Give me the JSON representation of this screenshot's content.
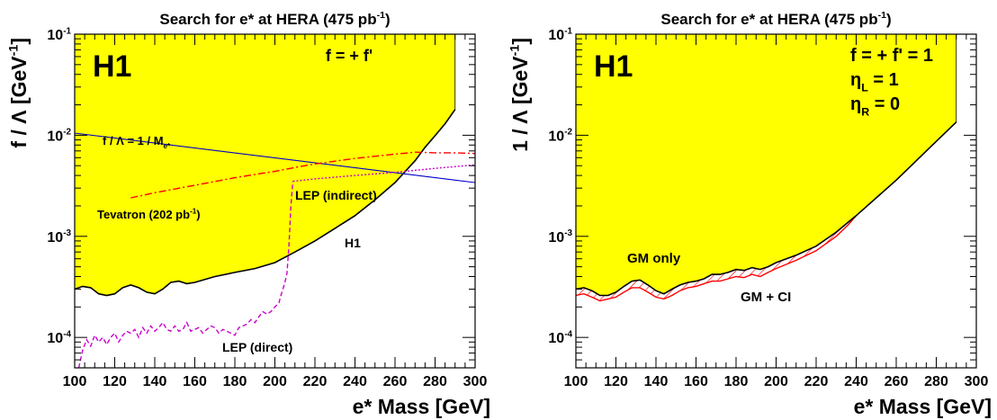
{
  "chart_data": [
    {
      "type": "line",
      "title": "Search for e* at HERA (475 pb",
      "title_sup": "-1",
      "title_end": ")",
      "xlabel": "e* Mass [GeV]",
      "ylabel": "f / Λ [GeV",
      "ylabel_sup": "-1",
      "ylabel_end": "]",
      "xlim": [
        100,
        300
      ],
      "ylim": [
        5e-05,
        0.1
      ],
      "yscale": "log",
      "x_ticks": [
        "100",
        "120",
        "140",
        "160",
        "180",
        "200",
        "220",
        "240",
        "260",
        "280",
        "300"
      ],
      "y_ticks": [
        {
          "base": "10",
          "exp": "-4",
          "v": 0.0001
        },
        {
          "base": "10",
          "exp": "-3",
          "v": 0.001
        },
        {
          "base": "10",
          "exp": "-2",
          "v": 0.01
        },
        {
          "base": "10",
          "exp": "-1",
          "v": 0.1
        }
      ],
      "logo": "H1",
      "annotation": "f = + f'",
      "series": [
        {
          "name": "H1",
          "kind": "exclusion",
          "color": "#000000",
          "fill": "#ffff00",
          "x": [
            100,
            104,
            108,
            112,
            116,
            120,
            124,
            128,
            132,
            136,
            140,
            144,
            148,
            152,
            156,
            160,
            170,
            180,
            190,
            200,
            210,
            220,
            230,
            240,
            250,
            260,
            270,
            275,
            280,
            285,
            290
          ],
          "y": [
            0.0003,
            0.00032,
            0.00031,
            0.00027,
            0.00026,
            0.00027,
            0.00031,
            0.00033,
            0.00031,
            0.00028,
            0.00027,
            0.0003,
            0.00035,
            0.00036,
            0.00034,
            0.00035,
            0.0004,
            0.00044,
            0.00048,
            0.00055,
            0.0007,
            0.0009,
            0.0012,
            0.0016,
            0.0023,
            0.0034,
            0.0056,
            0.0076,
            0.0099,
            0.013,
            0.018
          ]
        },
        {
          "name": "f / Λ  = 1 / M",
          "name_sub": "e*",
          "kind": "line",
          "color": "#0000cc",
          "x": [
            100,
            300
          ],
          "y": [
            0.0105,
            0.0034
          ]
        },
        {
          "name": "Tevatron (202 pb",
          "name_sup": "-1",
          "name_end": ")",
          "kind": "dashdot",
          "color": "#ff0000",
          "x": [
            128,
            140,
            160,
            180,
            200,
            210,
            220,
            240,
            260,
            270,
            280,
            290,
            300
          ],
          "y": [
            0.0024,
            0.0027,
            0.0032,
            0.0038,
            0.0044,
            0.0048,
            0.0052,
            0.0059,
            0.0065,
            0.0068,
            0.0067,
            0.0067,
            0.0066
          ]
        },
        {
          "name": "LEP (indirect)",
          "kind": "dotted",
          "color": "#cc00cc",
          "x": [
            209,
            220,
            240,
            260,
            280,
            300
          ],
          "y": [
            0.0035,
            0.0037,
            0.004,
            0.0043,
            0.0047,
            0.0051
          ]
        },
        {
          "name": "LEP (direct)",
          "kind": "dashed",
          "color": "#cc00cc",
          "x": [
            102,
            104,
            106,
            108,
            110,
            112,
            114,
            116,
            118,
            120,
            122,
            124,
            126,
            128,
            130,
            132,
            134,
            136,
            138,
            140,
            142,
            144,
            146,
            148,
            150,
            152,
            154,
            156,
            158,
            160,
            162,
            164,
            166,
            168,
            170,
            172,
            174,
            176,
            178,
            180,
            182,
            184,
            186,
            188,
            190,
            192,
            194,
            196,
            198,
            200,
            202,
            203,
            204,
            205,
            206,
            207,
            208,
            209
          ],
          "y": [
            5e-05,
            7.5e-05,
            9.5e-05,
            8.2e-05,
            0.000105,
            9e-05,
            0.0001,
            8.5e-05,
            0.0001,
            0.00011,
            9e-05,
            0.000105,
            0.000115,
            0.00011,
            0.00012,
            0.0001,
            0.000125,
            0.00011,
            0.00013,
            0.000115,
            0.000125,
            0.00014,
            0.00012,
            0.000115,
            0.00013,
            0.000115,
            0.00012,
            0.00014,
            0.000115,
            0.00012,
            0.000125,
            0.00011,
            0.00012,
            0.00013,
            0.000125,
            0.00011,
            0.00012,
            0.000115,
            0.00011,
            0.000105,
            0.000125,
            0.00013,
            0.000135,
            0.00015,
            0.00014,
            0.00016,
            0.00018,
            0.00017,
            0.00018,
            0.0002,
            0.00022,
            0.00026,
            0.0003,
            0.00035,
            0.00043,
            0.0008,
            0.002,
            0.0035
          ]
        }
      ],
      "labels": [
        {
          "text": "LEP (indirect)",
          "color": "#cc00cc"
        },
        {
          "text": "Tevatron (202 pb",
          "sup": "-1",
          "end": ")",
          "color": "#ff0000"
        },
        {
          "text": "H1",
          "color": "#000000"
        },
        {
          "text": "LEP (direct)",
          "color": "#cc00cc"
        }
      ]
    },
    {
      "type": "line",
      "title": "Search for e* at HERA (475 pb",
      "title_sup": "-1",
      "title_end": ")",
      "xlabel": "e* Mass [GeV]",
      "ylabel": "1 / Λ [GeV",
      "ylabel_sup": "-1",
      "ylabel_end": "]",
      "xlim": [
        100,
        300
      ],
      "ylim": [
        5e-05,
        0.1
      ],
      "yscale": "log",
      "x_ticks": [
        "100",
        "120",
        "140",
        "160",
        "180",
        "200",
        "220",
        "240",
        "260",
        "280",
        "300"
      ],
      "y_ticks": [
        {
          "base": "10",
          "exp": "-4",
          "v": 0.0001
        },
        {
          "base": "10",
          "exp": "-3",
          "v": 0.001
        },
        {
          "base": "10",
          "exp": "-2",
          "v": 0.01
        },
        {
          "base": "10",
          "exp": "-1",
          "v": 0.1
        }
      ],
      "logo": "H1",
      "annotations": [
        {
          "text": "f = + f' = 1"
        },
        {
          "text": "η",
          "sub": "L",
          "end": " = 1"
        },
        {
          "text": "η",
          "sub": "R",
          "end": " = 0"
        }
      ],
      "series": [
        {
          "name": "GM only",
          "kind": "exclusion",
          "color": "#000000",
          "fill": "#ffff00",
          "x": [
            100,
            104,
            108,
            112,
            116,
            120,
            124,
            128,
            132,
            136,
            140,
            144,
            148,
            152,
            156,
            160,
            164,
            168,
            172,
            176,
            180,
            184,
            188,
            192,
            196,
            200,
            210,
            220,
            230,
            240,
            250,
            260,
            270,
            280,
            290
          ],
          "y": [
            0.0003,
            0.00031,
            0.00029,
            0.00026,
            0.00026,
            0.00028,
            0.00032,
            0.00036,
            0.00037,
            0.00033,
            0.00029,
            0.00027,
            0.0003,
            0.00033,
            0.00035,
            0.00036,
            0.00038,
            0.00042,
            0.00042,
            0.00044,
            0.00047,
            0.00046,
            0.00049,
            0.00047,
            0.0005,
            0.00055,
            0.00065,
            0.0008,
            0.0011,
            0.0016,
            0.0024,
            0.0036,
            0.0056,
            0.0087,
            0.0135
          ]
        },
        {
          "name": "GM + CI",
          "kind": "hatched",
          "color": "#ff0000",
          "x": [
            100,
            104,
            108,
            112,
            116,
            120,
            124,
            128,
            132,
            136,
            140,
            144,
            148,
            152,
            156,
            160,
            164,
            168,
            172,
            176,
            180,
            184,
            188,
            192,
            196,
            200,
            210,
            220,
            230,
            236,
            240
          ],
          "y": [
            0.00026,
            0.00027,
            0.00025,
            0.00023,
            0.00024,
            0.00025,
            0.00028,
            0.00031,
            0.00031,
            0.00028,
            0.00025,
            0.00024,
            0.00026,
            0.00029,
            0.00031,
            0.00032,
            0.00034,
            0.00036,
            0.00036,
            0.00038,
            0.0004,
            0.00039,
            0.00042,
            0.0004,
            0.00044,
            0.00048,
            0.00058,
            0.00072,
            0.001,
            0.0013,
            0.0016
          ]
        }
      ],
      "labels": [
        {
          "text": "GM only",
          "color": "#000000"
        },
        {
          "text": "GM + CI",
          "color": "#ff0000"
        }
      ]
    }
  ]
}
